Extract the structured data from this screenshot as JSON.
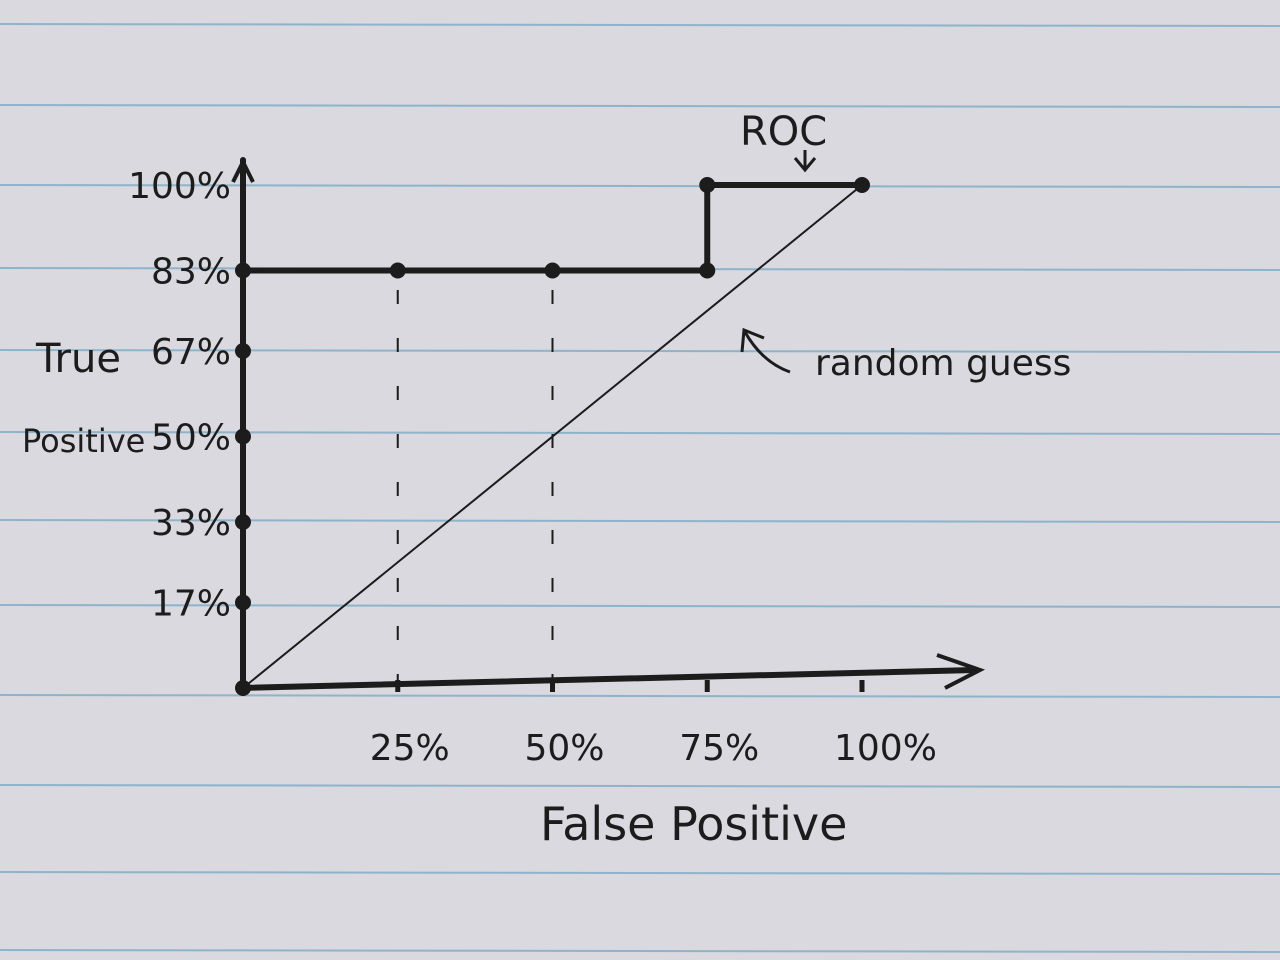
{
  "colors": {
    "paper": "#d9d9df",
    "ruled_line": "#8fb3c9",
    "ink": "#1c1c1c"
  },
  "chart_data": {
    "type": "line",
    "xlabel": "False Positive",
    "ylabel": "True Positive",
    "xlim": [
      0,
      100
    ],
    "ylim": [
      0,
      100
    ],
    "x_ticks": [
      {
        "value": 25,
        "label": "25%"
      },
      {
        "value": 50,
        "label": "50%"
      },
      {
        "value": 75,
        "label": "75%"
      },
      {
        "value": 100,
        "label": "100%"
      }
    ],
    "y_ticks": [
      {
        "value": 17,
        "label": "17%"
      },
      {
        "value": 33,
        "label": "33%"
      },
      {
        "value": 50,
        "label": "50%"
      },
      {
        "value": 67,
        "label": "67%"
      },
      {
        "value": 83,
        "label": "83%"
      },
      {
        "value": 100,
        "label": "100%"
      }
    ],
    "series": [
      {
        "name": "ROC",
        "x": [
          0,
          0,
          0,
          0,
          0,
          0,
          25,
          50,
          75,
          75,
          100
        ],
        "y": [
          0,
          17,
          33,
          50,
          67,
          83,
          83,
          83,
          83,
          100,
          100
        ]
      },
      {
        "name": "random guess",
        "x": [
          0,
          100
        ],
        "y": [
          0,
          100
        ]
      }
    ],
    "annotations": [
      "ROC",
      "random guess"
    ],
    "grid": false,
    "legend": "none"
  }
}
